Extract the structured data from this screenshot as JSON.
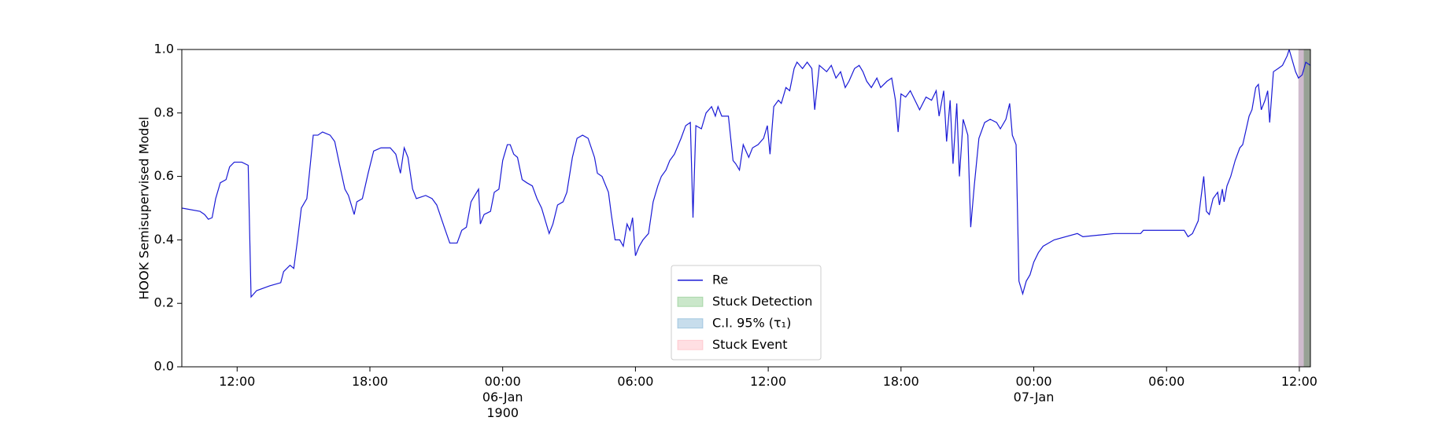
{
  "chart_data": {
    "type": "line",
    "ylabel": "HOOK Semisupervised Model",
    "xlim": [
      -14.5,
      36.5
    ],
    "xticks": [
      {
        "value": -12,
        "label": "12:00"
      },
      {
        "value": -6,
        "label": "18:00"
      },
      {
        "value": 0,
        "label": "00:00\n06-Jan\n1900"
      },
      {
        "value": 6,
        "label": "06:00"
      },
      {
        "value": 12,
        "label": "12:00"
      },
      {
        "value": 18,
        "label": "18:00"
      },
      {
        "value": 24,
        "label": "00:00\n07-Jan"
      },
      {
        "value": 30,
        "label": "06:00"
      },
      {
        "value": 36,
        "label": "12:00"
      }
    ],
    "ylim": [
      0,
      1
    ],
    "yticks": [
      {
        "value": 0,
        "label": "0.0"
      },
      0.2,
      0.4,
      0.6,
      0.8,
      {
        "value": 1,
        "label": "1.0"
      }
    ],
    "grid": false,
    "legend": "lower center",
    "series": [
      {
        "name": "Re",
        "color": "#1a1ad6",
        "x": [
          -14.48,
          -13.68,
          -13.47,
          -13.3,
          -13.13,
          -12.97,
          -12.76,
          -12.5,
          -12.34,
          -12.13,
          -11.79,
          -11.5,
          -11.37,
          -11.12,
          -10.53,
          -10.03,
          -9.9,
          -9.61,
          -9.44,
          -9.27,
          -9.1,
          -8.85,
          -8.56,
          -8.35,
          -8.14,
          -7.8,
          -7.59,
          -7.38,
          -7.13,
          -6.97,
          -6.71,
          -6.59,
          -6.34,
          -6.08,
          -5.83,
          -5.5,
          -5.08,
          -4.83,
          -4.62,
          -4.45,
          -4.28,
          -4.07,
          -3.9,
          -3.48,
          -3.19,
          -2.98,
          -2.64,
          -2.39,
          -2.06,
          -1.85,
          -1.64,
          -1.43,
          -1.26,
          -1.09,
          -1.01,
          -0.84,
          -0.55,
          -0.38,
          -0.17,
          0,
          0.21,
          0.34,
          0.5,
          0.67,
          0.88,
          1.09,
          1.34,
          1.55,
          1.76,
          2.1,
          2.27,
          2.48,
          2.73,
          2.9,
          3.15,
          3.36,
          3.61,
          3.86,
          4.15,
          4.28,
          4.49,
          4.78,
          4.91,
          5.08,
          5.29,
          5.45,
          5.62,
          5.75,
          5.87,
          6.0,
          6.17,
          6.34,
          6.59,
          6.8,
          7.01,
          7.17,
          7.38,
          7.55,
          7.76,
          8.06,
          8.27,
          8.48,
          8.6,
          8.73,
          8.98,
          9.19,
          9.44,
          9.61,
          9.73,
          9.9,
          10.2,
          10.41,
          10.53,
          10.7,
          10.87,
          11.12,
          11.29,
          11.54,
          11.79,
          11.96,
          12.08,
          12.25,
          12.46,
          12.59,
          12.8,
          12.97,
          13.17,
          13.3,
          13.55,
          13.76,
          13.97,
          14.1,
          14.31,
          14.64,
          14.85,
          15.06,
          15.27,
          15.48,
          15.65,
          15.9,
          16.11,
          16.28,
          16.45,
          16.66,
          16.91,
          17.08,
          17.37,
          17.58,
          17.75,
          17.87,
          18.0,
          18.21,
          18.42,
          18.63,
          18.84,
          19.13,
          19.38,
          19.59,
          19.72,
          19.93,
          20.06,
          20.22,
          20.35,
          20.52,
          20.64,
          20.81,
          21.02,
          21.15,
          21.31,
          21.52,
          21.78,
          22.03,
          22.32,
          22.49,
          22.74,
          22.91,
          23.03,
          23.2,
          23.33,
          23.5,
          23.66,
          23.83,
          24.0,
          24.21,
          24.42,
          24.92,
          25.97,
          26.22,
          27.65,
          28.83,
          28.95,
          30.8,
          30.97,
          31.17,
          31.43,
          31.55,
          31.68,
          31.8,
          31.93,
          32.1,
          32.31,
          32.39,
          32.52,
          32.6,
          32.73,
          32.9,
          33.1,
          33.31,
          33.44,
          33.57,
          33.73,
          33.86,
          34.03,
          34.15,
          34.28,
          34.45,
          34.57,
          34.66,
          34.83,
          35.04,
          35.24,
          35.45,
          35.54,
          35.83,
          35.96,
          36.13,
          36.29,
          36.5
        ],
        "values": [
          0.5,
          0.49,
          0.48,
          0.465,
          0.47,
          0.53,
          0.58,
          0.59,
          0.63,
          0.645,
          0.645,
          0.635,
          0.22,
          0.24,
          0.255,
          0.265,
          0.3,
          0.32,
          0.31,
          0.4,
          0.5,
          0.53,
          0.73,
          0.73,
          0.74,
          0.73,
          0.71,
          0.64,
          0.56,
          0.54,
          0.48,
          0.52,
          0.53,
          0.61,
          0.68,
          0.69,
          0.69,
          0.67,
          0.61,
          0.69,
          0.66,
          0.56,
          0.53,
          0.54,
          0.53,
          0.51,
          0.44,
          0.39,
          0.39,
          0.43,
          0.44,
          0.52,
          0.54,
          0.56,
          0.45,
          0.48,
          0.49,
          0.55,
          0.56,
          0.65,
          0.7,
          0.7,
          0.67,
          0.66,
          0.59,
          0.58,
          0.57,
          0.53,
          0.5,
          0.42,
          0.45,
          0.51,
          0.52,
          0.55,
          0.66,
          0.72,
          0.73,
          0.72,
          0.66,
          0.61,
          0.6,
          0.55,
          0.48,
          0.4,
          0.4,
          0.38,
          0.45,
          0.43,
          0.47,
          0.35,
          0.38,
          0.4,
          0.42,
          0.52,
          0.57,
          0.6,
          0.62,
          0.65,
          0.67,
          0.72,
          0.76,
          0.77,
          0.47,
          0.76,
          0.75,
          0.8,
          0.82,
          0.79,
          0.82,
          0.79,
          0.79,
          0.65,
          0.64,
          0.62,
          0.7,
          0.66,
          0.69,
          0.7,
          0.72,
          0.76,
          0.67,
          0.82,
          0.84,
          0.83,
          0.88,
          0.87,
          0.94,
          0.96,
          0.94,
          0.96,
          0.94,
          0.81,
          0.95,
          0.93,
          0.95,
          0.91,
          0.93,
          0.88,
          0.9,
          0.94,
          0.95,
          0.93,
          0.9,
          0.88,
          0.91,
          0.88,
          0.9,
          0.91,
          0.84,
          0.74,
          0.86,
          0.85,
          0.87,
          0.84,
          0.81,
          0.85,
          0.84,
          0.87,
          0.79,
          0.87,
          0.71,
          0.84,
          0.64,
          0.83,
          0.6,
          0.78,
          0.73,
          0.44,
          0.57,
          0.72,
          0.77,
          0.78,
          0.77,
          0.75,
          0.78,
          0.83,
          0.73,
          0.7,
          0.27,
          0.23,
          0.27,
          0.29,
          0.33,
          0.36,
          0.38,
          0.4,
          0.42,
          0.41,
          0.42,
          0.42,
          0.43,
          0.43,
          0.41,
          0.42,
          0.46,
          0.53,
          0.6,
          0.49,
          0.48,
          0.53,
          0.55,
          0.51,
          0.56,
          0.52,
          0.57,
          0.6,
          0.65,
          0.69,
          0.7,
          0.74,
          0.79,
          0.81,
          0.88,
          0.89,
          0.81,
          0.84,
          0.87,
          0.77,
          0.93,
          0.94,
          0.95,
          0.98,
          1.0,
          0.93,
          0.91,
          0.92,
          0.96,
          0.95
        ]
      }
    ],
    "spans": [
      {
        "name": "Stuck Detection",
        "color": "#2ca02c",
        "start": 36.2,
        "end": 36.5
      },
      {
        "name": "C.I. 95% (τ₁)",
        "color": "#1f77b4",
        "start": 35.96,
        "end": 36.5
      },
      {
        "name": "Stuck Event",
        "color": "#ff7f8e",
        "start": 35.96,
        "end": 36.5
      }
    ]
  }
}
